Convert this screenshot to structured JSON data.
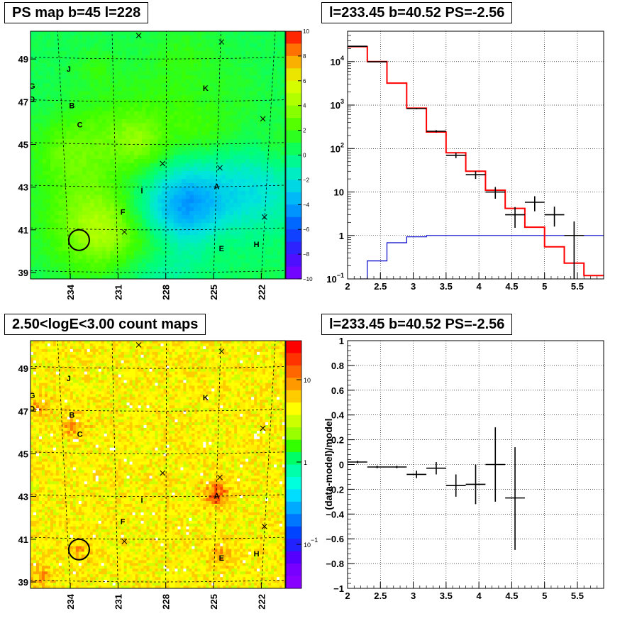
{
  "panels": {
    "ps_map": {
      "title": "PS map b=45 l=228"
    },
    "spectrum": {
      "title": "l=233.45 b=40.52 PS=-2.56"
    },
    "count_map": {
      "title": "2.50<logE<3.00 count maps"
    },
    "residual": {
      "title": "l=233.45 b=40.52 PS=-2.56"
    }
  },
  "colors": {
    "model": "#ff0000",
    "background": "#0000cc",
    "data": "#000000"
  },
  "chart_data": [
    {
      "type": "heatmap",
      "title": "PS map b=45 l=228",
      "xlim": [
        236.5,
        220.5
      ],
      "ylim": [
        38.7,
        50.3
      ],
      "x_ticks": [
        "234",
        "231",
        "228",
        "225",
        "222"
      ],
      "y_ticks": [
        "39",
        "41",
        "43",
        "45",
        "47",
        "49"
      ],
      "colorbar": {
        "min": -10,
        "max": 10,
        "ticks": [
          "10",
          "8",
          "6",
          "4",
          "2",
          "0",
          "−2",
          "−4",
          "−6",
          "−8",
          "−10"
        ]
      },
      "source_labels": [
        {
          "label": "J",
          "l": 234.1,
          "b": 48.4
        },
        {
          "label": "G",
          "l": 236.4,
          "b": 47.6
        },
        {
          "label": "D",
          "l": 236.4,
          "b": 47.0
        },
        {
          "label": "B",
          "l": 233.9,
          "b": 46.7
        },
        {
          "label": "C",
          "l": 233.4,
          "b": 45.8
        },
        {
          "label": "K",
          "l": 225.5,
          "b": 47.5
        },
        {
          "label": "I",
          "l": 229.5,
          "b": 42.7
        },
        {
          "label": "A",
          "l": 224.8,
          "b": 42.9
        },
        {
          "label": "F",
          "l": 230.7,
          "b": 41.7
        },
        {
          "label": "E",
          "l": 224.5,
          "b": 40.0
        },
        {
          "label": "H",
          "l": 222.3,
          "b": 40.2
        }
      ],
      "crosses": [
        {
          "l": 229.7,
          "b": 50.1
        },
        {
          "l": 224.5,
          "b": 49.8
        },
        {
          "l": 221.9,
          "b": 46.2
        },
        {
          "l": 228.2,
          "b": 44.1
        },
        {
          "l": 224.6,
          "b": 43.9
        },
        {
          "l": 221.8,
          "b": 41.6
        },
        {
          "l": 230.6,
          "b": 40.9
        }
      ],
      "circle": {
        "l": 233.45,
        "b": 40.52
      }
    },
    {
      "type": "line",
      "title": "l=233.45 b=40.52 PS=-2.56",
      "xlim": [
        2.0,
        5.9
      ],
      "ylim": [
        0.1,
        50000
      ],
      "yscale": "log",
      "x_ticks": [
        "2",
        "2.5",
        "3",
        "3.5",
        "4",
        "4.5",
        "5",
        "5.5"
      ],
      "y_ticks": [
        "10^-1",
        "1",
        "10",
        "10^2",
        "10^3",
        "10^4"
      ],
      "grid": true,
      "model_steps": [
        {
          "x0": 2.0,
          "x1": 2.3,
          "y": 22000
        },
        {
          "x0": 2.3,
          "x1": 2.6,
          "y": 10000
        },
        {
          "x0": 2.6,
          "x1": 2.9,
          "y": 3200
        },
        {
          "x0": 2.9,
          "x1": 3.2,
          "y": 850
        },
        {
          "x0": 3.2,
          "x1": 3.5,
          "y": 240
        },
        {
          "x0": 3.5,
          "x1": 3.8,
          "y": 80
        },
        {
          "x0": 3.8,
          "x1": 4.1,
          "y": 30
        },
        {
          "x0": 4.1,
          "x1": 4.4,
          "y": 11
        },
        {
          "x0": 4.4,
          "x1": 4.7,
          "y": 4.2
        },
        {
          "x0": 4.7,
          "x1": 5.0,
          "y": 1.55
        },
        {
          "x0": 5.0,
          "x1": 5.3,
          "y": 0.55
        },
        {
          "x0": 5.3,
          "x1": 5.6,
          "y": 0.23
        },
        {
          "x0": 5.6,
          "x1": 5.9,
          "y": 0.12
        }
      ],
      "background_steps": [
        {
          "x0": 2.2,
          "x1": 2.3,
          "y": 0.1
        },
        {
          "x0": 2.3,
          "x1": 2.6,
          "y": 0.26
        },
        {
          "x0": 2.6,
          "x1": 2.9,
          "y": 0.68
        },
        {
          "x0": 2.9,
          "x1": 3.2,
          "y": 0.93
        },
        {
          "x0": 3.2,
          "x1": 5.9,
          "y": 1.0
        }
      ],
      "data_points": [
        {
          "x": 2.15,
          "xerr": 0.15,
          "y": 22500,
          "ylo": 22300,
          "yhi": 22700
        },
        {
          "x": 2.45,
          "xerr": 0.15,
          "y": 9900,
          "ylo": 9800,
          "yhi": 10000
        },
        {
          "x": 3.05,
          "xerr": 0.15,
          "y": 830,
          "ylo": 800,
          "yhi": 860
        },
        {
          "x": 3.35,
          "xerr": 0.15,
          "y": 250,
          "ylo": 235,
          "yhi": 265
        },
        {
          "x": 3.65,
          "xerr": 0.15,
          "y": 70,
          "ylo": 60,
          "yhi": 80
        },
        {
          "x": 3.95,
          "xerr": 0.15,
          "y": 25,
          "ylo": 20,
          "yhi": 30
        },
        {
          "x": 4.25,
          "xerr": 0.15,
          "y": 10,
          "ylo": 7,
          "yhi": 13
        },
        {
          "x": 4.55,
          "xerr": 0.15,
          "y": 3.0,
          "ylo": 1.5,
          "yhi": 4.5
        },
        {
          "x": 4.85,
          "xerr": 0.15,
          "y": 5.8,
          "ylo": 3.6,
          "yhi": 8.0
        },
        {
          "x": 5.15,
          "xerr": 0.15,
          "y": 3.0,
          "ylo": 1.6,
          "yhi": 4.6
        },
        {
          "x": 5.45,
          "xerr": 0.15,
          "y": 1.0,
          "ylo": 0.1,
          "yhi": 2.1
        }
      ]
    },
    {
      "type": "heatmap",
      "title": "2.50<logE<3.00 count maps",
      "xlim": [
        236.5,
        220.5
      ],
      "ylim": [
        38.7,
        50.3
      ],
      "x_ticks": [
        "234",
        "231",
        "228",
        "225",
        "222"
      ],
      "y_ticks": [
        "39",
        "41",
        "43",
        "45",
        "47",
        "49"
      ],
      "colorbar": {
        "scale": "log",
        "ticks": [
          "10",
          "1",
          "10^-1"
        ]
      },
      "hotspots": [
        {
          "l": 224.8,
          "b": 43.1,
          "strength": 1.0
        },
        {
          "l": 233.8,
          "b": 46.3,
          "strength": 0.6
        },
        {
          "l": 224.5,
          "b": 40.2,
          "strength": 0.5
        },
        {
          "l": 236.0,
          "b": 47.2,
          "strength": 0.4
        },
        {
          "l": 235.8,
          "b": 39.2,
          "strength": 0.5
        },
        {
          "l": 233.5,
          "b": 40.5,
          "strength": 0.35
        }
      ],
      "source_labels": [
        {
          "label": "J",
          "l": 234.1,
          "b": 48.4
        },
        {
          "label": "G",
          "l": 236.4,
          "b": 47.6
        },
        {
          "label": "D",
          "l": 236.4,
          "b": 47.0
        },
        {
          "label": "B",
          "l": 233.9,
          "b": 46.7
        },
        {
          "label": "C",
          "l": 233.4,
          "b": 45.8
        },
        {
          "label": "K",
          "l": 225.5,
          "b": 47.5
        },
        {
          "label": "I",
          "l": 229.5,
          "b": 42.7
        },
        {
          "label": "A",
          "l": 224.8,
          "b": 42.9
        },
        {
          "label": "F",
          "l": 230.7,
          "b": 41.7
        },
        {
          "label": "E",
          "l": 224.5,
          "b": 40.0
        },
        {
          "label": "H",
          "l": 222.3,
          "b": 40.2
        }
      ],
      "crosses": [
        {
          "l": 229.7,
          "b": 50.1
        },
        {
          "l": 224.5,
          "b": 49.8
        },
        {
          "l": 221.9,
          "b": 46.2
        },
        {
          "l": 228.2,
          "b": 44.1
        },
        {
          "l": 224.6,
          "b": 43.9
        },
        {
          "l": 221.8,
          "b": 41.6
        },
        {
          "l": 230.6,
          "b": 40.9
        }
      ],
      "circle": {
        "l": 233.45,
        "b": 40.52
      }
    },
    {
      "type": "scatter",
      "title": "l=233.45 b=40.52 PS=-2.56",
      "ylabel": "(data-model)/model",
      "xlim": [
        2.0,
        5.9
      ],
      "ylim": [
        -1.0,
        1.0
      ],
      "x_ticks": [
        "2",
        "2.5",
        "3",
        "3.5",
        "4",
        "4.5",
        "5",
        "5.5"
      ],
      "y_ticks": [
        "−1",
        "−0.8",
        "−0.6",
        "−0.4",
        "−0.2",
        "0",
        "0.2",
        "0.4",
        "0.6",
        "0.8",
        "1"
      ],
      "grid": true,
      "data_points": [
        {
          "x": 2.15,
          "xerr": 0.15,
          "y": 0.02,
          "ylo": 0.01,
          "yhi": 0.03
        },
        {
          "x": 2.45,
          "xerr": 0.15,
          "y": -0.02,
          "ylo": -0.03,
          "yhi": -0.01
        },
        {
          "x": 2.75,
          "xerr": 0.15,
          "y": -0.02,
          "ylo": -0.03,
          "yhi": -0.01
        },
        {
          "x": 3.05,
          "xerr": 0.15,
          "y": -0.08,
          "ylo": -0.11,
          "yhi": -0.05
        },
        {
          "x": 3.35,
          "xerr": 0.15,
          "y": -0.03,
          "ylo": -0.08,
          "yhi": 0.02
        },
        {
          "x": 3.65,
          "xerr": 0.15,
          "y": -0.17,
          "ylo": -0.26,
          "yhi": -0.08
        },
        {
          "x": 3.95,
          "xerr": 0.15,
          "y": -0.16,
          "ylo": -0.32,
          "yhi": 0.0
        },
        {
          "x": 4.25,
          "xerr": 0.15,
          "y": 0.0,
          "ylo": -0.3,
          "yhi": 0.3
        },
        {
          "x": 4.55,
          "xerr": 0.15,
          "y": -0.27,
          "ylo": -0.69,
          "yhi": 0.14
        }
      ]
    }
  ]
}
